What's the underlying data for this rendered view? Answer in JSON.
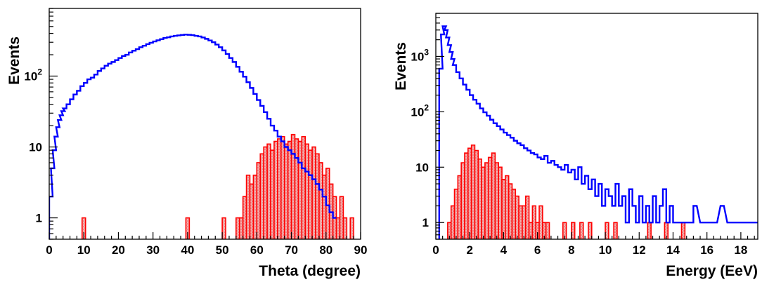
{
  "chart_data": [
    {
      "type": "histogram",
      "xlabel": "Theta (degree)",
      "ylabel": "Events",
      "xlim": [
        0,
        90
      ],
      "ylim": [
        0.5,
        900
      ],
      "log_y": true,
      "x_ticks": [
        "0",
        "10",
        "20",
        "30",
        "40",
        "50",
        "60",
        "70",
        "80",
        "90"
      ],
      "y_ticks": [
        {
          "base": "1",
          "exp": ""
        },
        {
          "base": "10",
          "exp": ""
        },
        {
          "base": "10",
          "exp": "2"
        }
      ],
      "series": [
        {
          "color": "#0000ff",
          "style": "step-line",
          "bins": [
            [
              0,
              2
            ],
            [
              0.5,
              5
            ],
            [
              1,
              9
            ],
            [
              1.5,
              14
            ],
            [
              2,
              19
            ],
            [
              2.5,
              24
            ],
            [
              3,
              28
            ],
            [
              3.5,
              32
            ],
            [
              4,
              35
            ],
            [
              5,
              40
            ],
            [
              6,
              47
            ],
            [
              7,
              55
            ],
            [
              8,
              62
            ],
            [
              9,
              72
            ],
            [
              10,
              80
            ],
            [
              11,
              90
            ],
            [
              12,
              95
            ],
            [
              13,
              105
            ],
            [
              14,
              118
            ],
            [
              15,
              128
            ],
            [
              16,
              140
            ],
            [
              17,
              150
            ],
            [
              18,
              158
            ],
            [
              19,
              168
            ],
            [
              20,
              180
            ],
            [
              21,
              192
            ],
            [
              22,
              200
            ],
            [
              23,
              215
            ],
            [
              24,
              228
            ],
            [
              25,
              240
            ],
            [
              26,
              255
            ],
            [
              27,
              268
            ],
            [
              28,
              282
            ],
            [
              29,
              295
            ],
            [
              30,
              308
            ],
            [
              31,
              320
            ],
            [
              32,
              332
            ],
            [
              33,
              345
            ],
            [
              34,
              352
            ],
            [
              35,
              362
            ],
            [
              36,
              370
            ],
            [
              37,
              375
            ],
            [
              38,
              380
            ],
            [
              39,
              385
            ],
            [
              40,
              382
            ],
            [
              41,
              378
            ],
            [
              42,
              370
            ],
            [
              43,
              362
            ],
            [
              44,
              350
            ],
            [
              45,
              335
            ],
            [
              46,
              318
            ],
            [
              47,
              300
            ],
            [
              48,
              278
            ],
            [
              49,
              255
            ],
            [
              50,
              230
            ],
            [
              51,
              205
            ],
            [
              52,
              180
            ],
            [
              53,
              158
            ],
            [
              54,
              135
            ],
            [
              55,
              115
            ],
            [
              56,
              98
            ],
            [
              57,
              82
            ],
            [
              58,
              68
            ],
            [
              59,
              56
            ],
            [
              60,
              46
            ],
            [
              61,
              38
            ],
            [
              62,
              31
            ],
            [
              63,
              25
            ],
            [
              64,
              20
            ],
            [
              65,
              17
            ],
            [
              66,
              14
            ],
            [
              67,
              12
            ],
            [
              68,
              10
            ],
            [
              69,
              9
            ],
            [
              70,
              8
            ],
            [
              71,
              7
            ],
            [
              72,
              6
            ],
            [
              73,
              5
            ],
            [
              74,
              4.5
            ],
            [
              75,
              4
            ],
            [
              76,
              3.5
            ],
            [
              77,
              3
            ],
            [
              78,
              2.5
            ],
            [
              79,
              2
            ],
            [
              80,
              1.5
            ],
            [
              81,
              1.2
            ],
            [
              82,
              1
            ]
          ]
        },
        {
          "color": "#ff0000",
          "fill": "#f4a5a5",
          "style": "filled-step",
          "bins": [
            [
              9.5,
              1
            ],
            [
              39.5,
              1
            ],
            [
              50,
              1
            ],
            [
              54,
              1
            ],
            [
              55,
              1
            ],
            [
              56,
              2
            ],
            [
              57,
              4
            ],
            [
              58,
              3
            ],
            [
              59,
              4
            ],
            [
              60,
              6
            ],
            [
              61,
              8
            ],
            [
              62,
              10
            ],
            [
              63,
              11
            ],
            [
              64,
              9
            ],
            [
              65,
              12
            ],
            [
              66,
              13
            ],
            [
              67,
              14
            ],
            [
              68,
              11
            ],
            [
              69,
              12
            ],
            [
              70,
              15
            ],
            [
              71,
              13
            ],
            [
              72,
              12
            ],
            [
              73,
              14
            ],
            [
              74,
              11
            ],
            [
              75,
              9
            ],
            [
              76,
              10
            ],
            [
              77,
              8
            ],
            [
              78,
              6
            ],
            [
              79,
              4
            ],
            [
              80,
              5
            ],
            [
              81,
              3
            ],
            [
              82,
              2
            ],
            [
              83,
              1
            ],
            [
              84,
              2
            ],
            [
              85,
              1
            ],
            [
              87,
              1
            ]
          ]
        }
      ]
    },
    {
      "type": "histogram",
      "xlabel": "Energy (EeV)",
      "ylabel": "Events",
      "xlim": [
        0,
        19
      ],
      "ylim": [
        0.5,
        6000
      ],
      "log_y": true,
      "x_ticks": [
        "0",
        "2",
        "4",
        "6",
        "8",
        "10",
        "12",
        "14",
        "16",
        "18"
      ],
      "y_ticks": [
        {
          "base": "1",
          "exp": ""
        },
        {
          "base": "10",
          "exp": ""
        },
        {
          "base": "10",
          "exp": "2"
        },
        {
          "base": "10",
          "exp": "3"
        }
      ],
      "series": [
        {
          "color": "#0000ff",
          "style": "step-line",
          "bins": [
            [
              0.2,
              600
            ],
            [
              0.3,
              2500
            ],
            [
              0.4,
              3500
            ],
            [
              0.5,
              3000
            ],
            [
              0.6,
              2200
            ],
            [
              0.7,
              1600
            ],
            [
              0.8,
              1200
            ],
            [
              0.9,
              900
            ],
            [
              1.0,
              700
            ],
            [
              1.2,
              520
            ],
            [
              1.4,
              400
            ],
            [
              1.6,
              310
            ],
            [
              1.8,
              250
            ],
            [
              2.0,
              200
            ],
            [
              2.2,
              165
            ],
            [
              2.4,
              140
            ],
            [
              2.6,
              115
            ],
            [
              2.8,
              98
            ],
            [
              3.0,
              85
            ],
            [
              3.2,
              72
            ],
            [
              3.4,
              62
            ],
            [
              3.6,
              55
            ],
            [
              3.8,
              48
            ],
            [
              4.0,
              42
            ],
            [
              4.2,
              38
            ],
            [
              4.4,
              34
            ],
            [
              4.6,
              30
            ],
            [
              4.8,
              27
            ],
            [
              5.0,
              25
            ],
            [
              5.2,
              22
            ],
            [
              5.4,
              20
            ],
            [
              5.6,
              18
            ],
            [
              5.8,
              17
            ],
            [
              6.0,
              15
            ],
            [
              6.2,
              14
            ],
            [
              6.4,
              16
            ],
            [
              6.6,
              12
            ],
            [
              6.8,
              13
            ],
            [
              7.0,
              11
            ],
            [
              7.2,
              10
            ],
            [
              7.4,
              9
            ],
            [
              7.6,
              11
            ],
            [
              7.8,
              8
            ],
            [
              8.0,
              9
            ],
            [
              8.2,
              6
            ],
            [
              8.4,
              10
            ],
            [
              8.6,
              5
            ],
            [
              8.8,
              7
            ],
            [
              9.0,
              4
            ],
            [
              9.2,
              6
            ],
            [
              9.4,
              3
            ],
            [
              9.6,
              5
            ],
            [
              9.8,
              2
            ],
            [
              10.0,
              4
            ],
            [
              10.2,
              3
            ],
            [
              10.4,
              2
            ],
            [
              10.6,
              5
            ],
            [
              10.8,
              2
            ],
            [
              11.0,
              3
            ],
            [
              11.2,
              1
            ],
            [
              11.4,
              4
            ],
            [
              11.6,
              2
            ],
            [
              11.8,
              1
            ],
            [
              12.0,
              3
            ],
            [
              12.2,
              1
            ],
            [
              12.4,
              2
            ],
            [
              12.6,
              1
            ],
            [
              12.8,
              3
            ],
            [
              13.0,
              1
            ],
            [
              13.2,
              2
            ],
            [
              13.4,
              4
            ],
            [
              13.6,
              1
            ],
            [
              13.8,
              2
            ],
            [
              14.0,
              1
            ],
            [
              14.4,
              1
            ],
            [
              15.0,
              1
            ],
            [
              15.2,
              2
            ],
            [
              15.6,
              1
            ],
            [
              16.0,
              1
            ],
            [
              16.4,
              1
            ],
            [
              16.8,
              2
            ],
            [
              17.2,
              1
            ],
            [
              17.6,
              1
            ],
            [
              18.0,
              1
            ],
            [
              18.4,
              1
            ],
            [
              18.8,
              1
            ]
          ]
        },
        {
          "color": "#ff0000",
          "fill": "#f4a5a5",
          "style": "filled-step",
          "bins": [
            [
              0.7,
              1
            ],
            [
              0.9,
              2
            ],
            [
              1.1,
              4
            ],
            [
              1.3,
              7
            ],
            [
              1.5,
              12
            ],
            [
              1.7,
              18
            ],
            [
              1.9,
              22
            ],
            [
              2.1,
              25
            ],
            [
              2.3,
              20
            ],
            [
              2.5,
              14
            ],
            [
              2.7,
              10
            ],
            [
              2.9,
              12
            ],
            [
              3.1,
              15
            ],
            [
              3.3,
              18
            ],
            [
              3.5,
              12
            ],
            [
              3.7,
              10
            ],
            [
              3.9,
              6
            ],
            [
              4.1,
              7
            ],
            [
              4.3,
              5
            ],
            [
              4.5,
              4
            ],
            [
              4.7,
              3
            ],
            [
              4.9,
              2
            ],
            [
              5.1,
              2
            ],
            [
              5.3,
              3
            ],
            [
              5.5,
              1
            ],
            [
              5.7,
              2
            ],
            [
              5.9,
              1
            ],
            [
              6.1,
              2
            ],
            [
              6.3,
              1
            ],
            [
              6.5,
              1
            ],
            [
              7.5,
              1
            ],
            [
              8.0,
              1
            ],
            [
              8.5,
              1
            ],
            [
              9.0,
              1
            ],
            [
              10.0,
              1
            ],
            [
              10.5,
              1
            ],
            [
              12.5,
              1
            ],
            [
              13.5,
              1
            ],
            [
              14.5,
              1
            ]
          ]
        }
      ]
    }
  ]
}
